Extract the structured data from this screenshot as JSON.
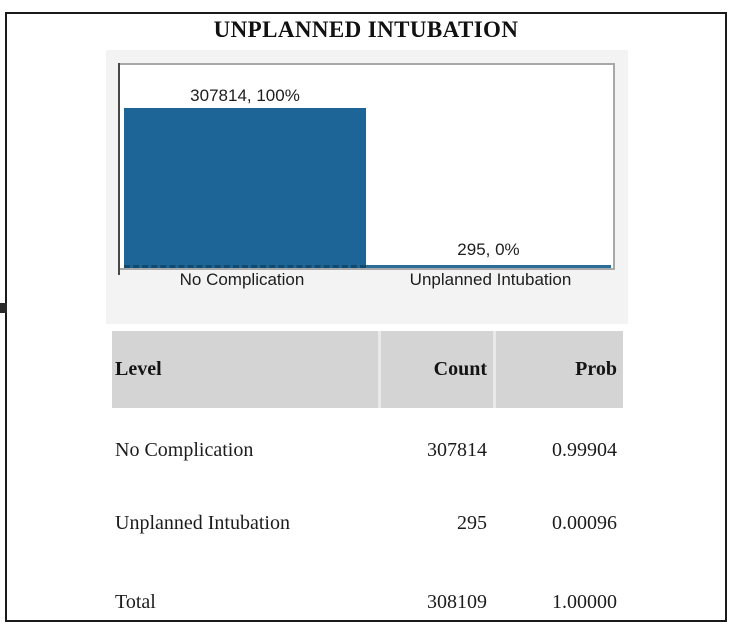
{
  "report": {
    "title": "UNPLANNED INTUBATION"
  },
  "chart_data": {
    "type": "bar",
    "title": "UNPLANNED INTUBATION",
    "categories": [
      "No Complication",
      "Unplanned Intubation"
    ],
    "values": [
      307814,
      295
    ],
    "percents": [
      100,
      0
    ],
    "bar_labels": [
      "307814, 100%",
      "295, 0%"
    ],
    "xlabel": "",
    "ylabel": "",
    "ylim": [
      0,
      390000
    ],
    "grid": false,
    "legend": false,
    "bar_color": "#1c6596",
    "plot_background": "#ffffff",
    "panel_background": "#f3f3f3",
    "plot_border_color": "#a8a8a8"
  },
  "table": {
    "header_background": "#d4d4d4",
    "columns": [
      "Level",
      "Count",
      "Prob"
    ],
    "rows": [
      {
        "level": "No Complication",
        "count": "307814",
        "prob": "0.99904"
      },
      {
        "level": "Unplanned Intubation",
        "count": "295",
        "prob": "0.00096"
      },
      {
        "level": "Total",
        "count": "308109",
        "prob": "1.00000"
      }
    ]
  }
}
